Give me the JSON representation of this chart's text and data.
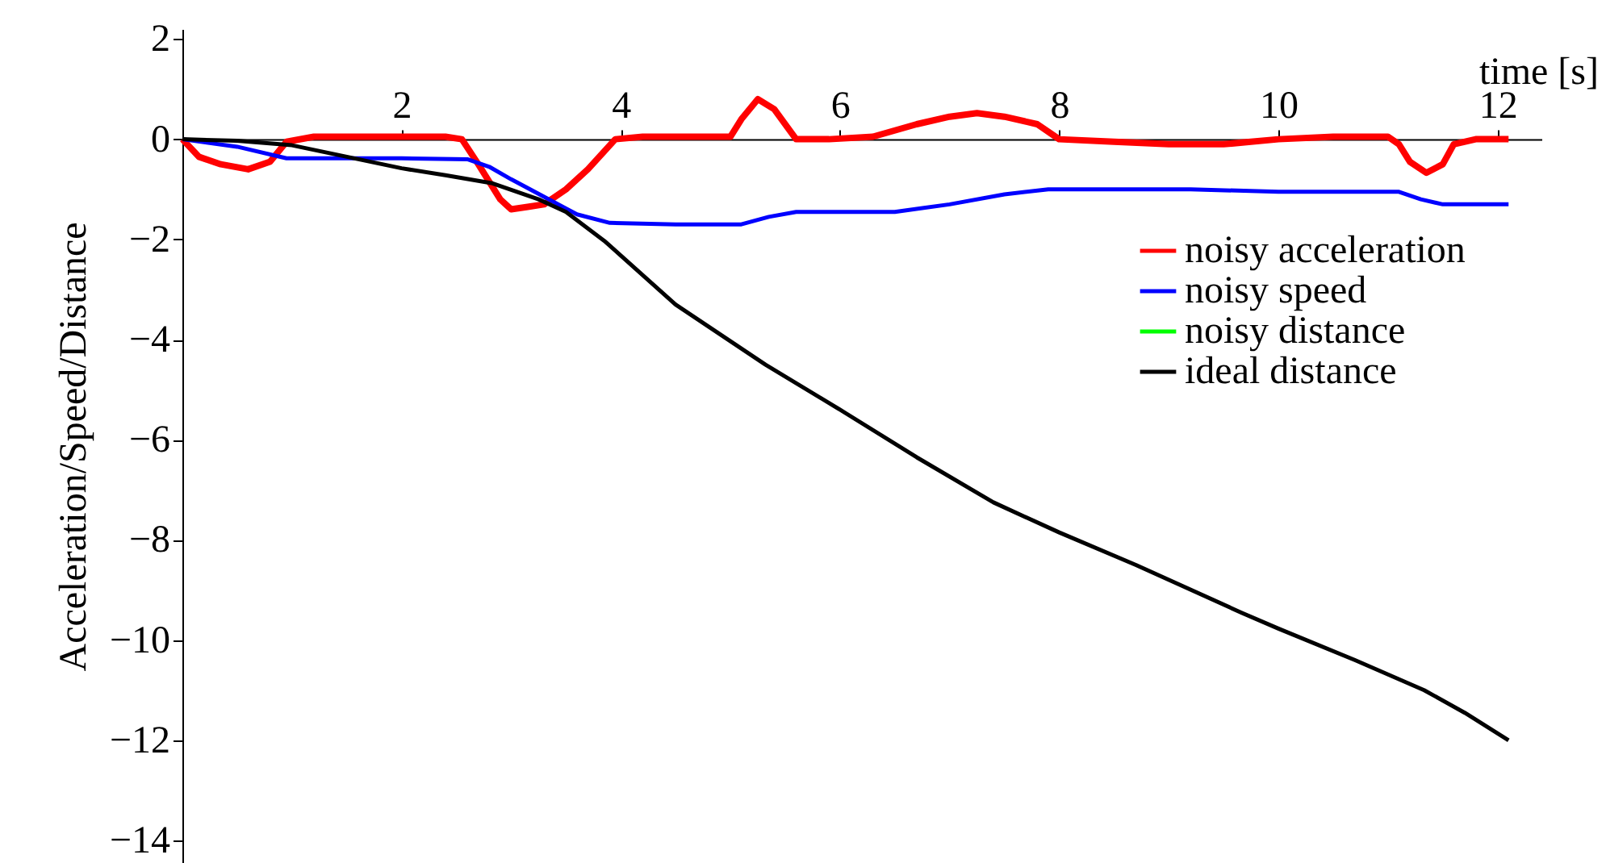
{
  "chart_data": {
    "type": "line",
    "xlabel": "time [s]",
    "ylabel": "Acceleration/Speed/Distance",
    "xlim": [
      0,
      12.4
    ],
    "ylim": [
      -14.45,
      2.2
    ],
    "xticks": [
      2,
      4,
      6,
      8,
      10,
      12
    ],
    "yticks": [
      2,
      0,
      -2,
      -4,
      -6,
      -8,
      -10,
      -12,
      -14
    ],
    "grid": false,
    "legend": "right",
    "line_style": "solid",
    "marker": "none",
    "series": [
      {
        "name": "noisy acceleration",
        "color": "#ff0000",
        "x": [
          0,
          0.15,
          0.35,
          0.6,
          0.8,
          0.95,
          1.2,
          1.6,
          2.0,
          2.4,
          2.55,
          2.7,
          2.9,
          3.0,
          3.15,
          3.3,
          3.5,
          3.7,
          3.95,
          4.2,
          4.6,
          5.0,
          5.1,
          5.25,
          5.4,
          5.6,
          5.9,
          6.3,
          6.7,
          7.0,
          7.25,
          7.5,
          7.8,
          8.0,
          8.5,
          9.0,
          9.5,
          10.0,
          10.5,
          11.0,
          11.1,
          11.2,
          11.35,
          11.5,
          11.6,
          11.8,
          12.1
        ],
        "values": [
          0,
          -0.35,
          -0.5,
          -0.6,
          -0.45,
          -0.05,
          0.05,
          0.05,
          0.05,
          0.05,
          0,
          -0.5,
          -1.2,
          -1.4,
          -1.35,
          -1.3,
          -1.0,
          -0.6,
          0,
          0.05,
          0.05,
          0.05,
          0.4,
          0.8,
          0.6,
          0,
          0,
          0.05,
          0.3,
          0.45,
          0.52,
          0.45,
          0.3,
          0,
          -0.05,
          -0.1,
          -0.1,
          0,
          0.05,
          0.05,
          -0.1,
          -0.45,
          -0.67,
          -0.5,
          -0.1,
          0,
          0
        ]
      },
      {
        "name": "noisy speed",
        "color": "#0000ff",
        "x": [
          0,
          0.5,
          0.95,
          1.5,
          2.0,
          2.6,
          2.8,
          3.0,
          3.3,
          3.6,
          3.9,
          4.5,
          5.1,
          5.35,
          5.6,
          6.0,
          6.5,
          7.0,
          7.5,
          7.9,
          8.5,
          9.2,
          10.0,
          11.1,
          11.3,
          11.5,
          12.1
        ],
        "values": [
          0,
          -0.15,
          -0.38,
          -0.38,
          -0.38,
          -0.4,
          -0.55,
          -0.8,
          -1.15,
          -1.5,
          -1.67,
          -1.7,
          -1.7,
          -1.55,
          -1.45,
          -1.45,
          -1.45,
          -1.3,
          -1.1,
          -1.0,
          -1.0,
          -1.0,
          -1.05,
          -1.05,
          -1.2,
          -1.3,
          -1.3
        ]
      },
      {
        "name": "noisy distance",
        "color": "#00ff00"
      },
      {
        "name": "ideal distance",
        "color": "#000000",
        "x": [
          0,
          0.5,
          1.0,
          1.5,
          2.0,
          2.4,
          2.83,
          3.25,
          3.5,
          3.85,
          4.5,
          5.32,
          6.0,
          6.7,
          7.4,
          8.0,
          8.7,
          9.66,
          10.0,
          10.7,
          11.33,
          11.7,
          12.1
        ],
        "values": [
          0,
          -0.03,
          -0.12,
          -0.35,
          -0.58,
          -0.72,
          -0.88,
          -1.2,
          -1.45,
          -2.03,
          -3.3,
          -4.5,
          -5.4,
          -6.35,
          -7.25,
          -7.85,
          -8.5,
          -9.45,
          -9.77,
          -10.4,
          -11.0,
          -11.45,
          -12.0
        ]
      }
    ]
  }
}
